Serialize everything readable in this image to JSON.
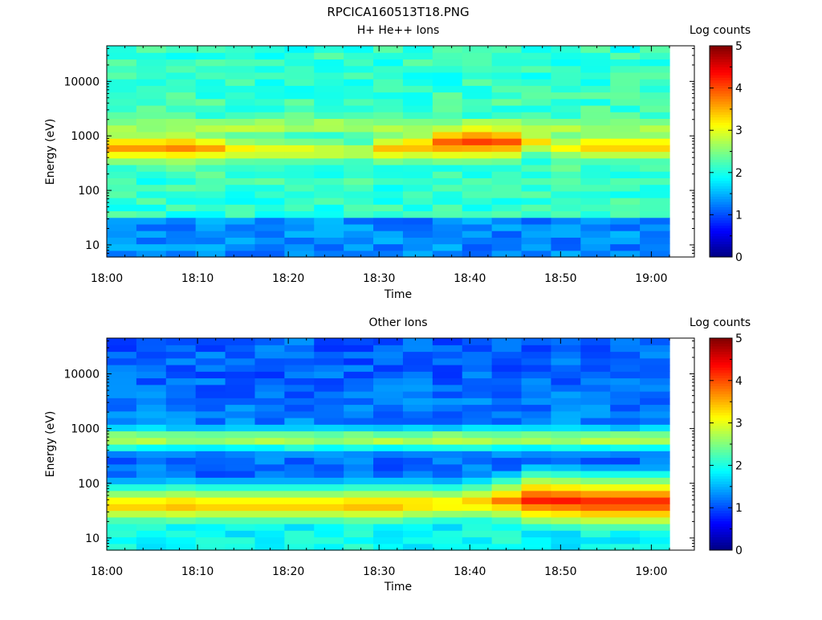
{
  "figure": {
    "title": "RPCICA160513T18.PNG"
  },
  "chart_data": [
    {
      "type": "heatmap",
      "title": "H+ He++ Ions",
      "xlabel": "Time",
      "ylabel": "Energy (eV)",
      "y_scale": "log",
      "y_ticks": [
        "10",
        "100",
        "1000",
        "10000"
      ],
      "x_ticks": [
        "18:00",
        "18:10",
        "18:20",
        "18:30",
        "18:40",
        "18:50",
        "19:00"
      ],
      "time_range": [
        "18:00",
        "19:02"
      ],
      "energy_range_ev": [
        6,
        45000
      ],
      "colorbar": {
        "label": "Log counts",
        "range": [
          0,
          5
        ],
        "ticks": [
          "0",
          "1",
          "2",
          "3",
          "4",
          "5"
        ]
      },
      "time_bins": 19,
      "energy_bins": 32,
      "background_log_counts": 2.1,
      "peak_band": {
        "energy_ev": [
          620,
          620,
          620,
          600,
          560,
          540,
          540,
          520,
          520,
          580,
          650,
          750,
          800,
          780,
          790,
          620,
          650,
          650,
          650
        ],
        "log_counts": [
          3.7,
          3.7,
          3.8,
          3.6,
          3.3,
          3.2,
          3.2,
          3.1,
          3.0,
          3.5,
          3.6,
          4.0,
          4.1,
          4.0,
          3.3,
          3.2,
          3.5,
          3.5,
          3.5
        ]
      },
      "secondary_band": {
        "energy_ev": 1550,
        "log_counts": 3.0
      },
      "low_energy_band": {
        "energy_ev_below": 35,
        "log_counts": 1.3
      }
    },
    {
      "type": "heatmap",
      "title": "Other Ions",
      "xlabel": "Time",
      "ylabel": "Energy (eV)",
      "y_scale": "log",
      "y_ticks": [
        "10",
        "100",
        "1000",
        "10000"
      ],
      "x_ticks": [
        "18:00",
        "18:10",
        "18:20",
        "18:30",
        "18:40",
        "18:50",
        "19:00"
      ],
      "time_range": [
        "18:00",
        "19:02"
      ],
      "energy_range_ev": [
        6,
        45000
      ],
      "colorbar": {
        "label": "Log counts",
        "range": [
          0,
          5
        ],
        "ticks": [
          "0",
          "1",
          "2",
          "3",
          "4",
          "5"
        ]
      },
      "time_bins": 19,
      "energy_bins": 32,
      "background_log_counts": 1.1,
      "peak_band": {
        "energy_ev": [
          40,
          40,
          40,
          40,
          40,
          40,
          40,
          40,
          40,
          40,
          42,
          42,
          45,
          48,
          50,
          48,
          45,
          45,
          45
        ],
        "log_counts": [
          3.5,
          3.5,
          3.6,
          3.5,
          3.5,
          3.5,
          3.5,
          3.5,
          3.6,
          3.6,
          3.5,
          3.4,
          3.5,
          3.8,
          4.3,
          4.3,
          4.3,
          4.3,
          4.3
        ]
      },
      "secondary_band": {
        "energy_ev": 650,
        "log_counts": 2.9
      },
      "low_energy_band": {
        "energy_ev_below": 25,
        "log_counts": 1.9
      }
    }
  ]
}
